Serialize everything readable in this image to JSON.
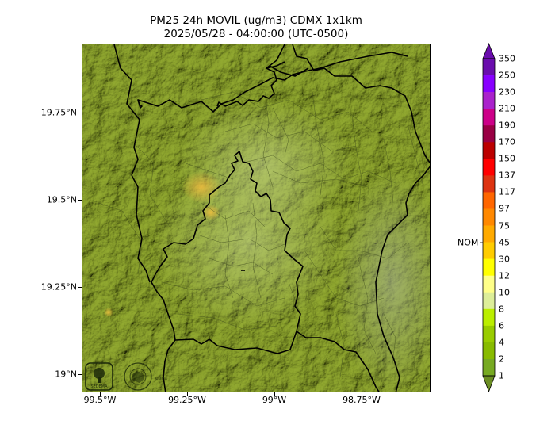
{
  "title": {
    "line1": "PM25 24h MOVIL (ug/m3) CDMX 1x1km",
    "line2": "2025/05/28 - 04:00:00 (UTC-0500)"
  },
  "axes": {
    "y_ticks": [
      "19.75°N",
      "19.5°N",
      "19.25°N",
      "19°N"
    ],
    "x_ticks": [
      "99.5°W",
      "99.25°W",
      "99°W",
      "98.75°W"
    ]
  },
  "colorbar": {
    "labels": [
      "350",
      "250",
      "230",
      "210",
      "190",
      "170",
      "150",
      "137",
      "117",
      "97",
      "75",
      "45",
      "30",
      "12",
      "10",
      "8",
      "6",
      "4",
      "2",
      "1"
    ],
    "colors_top_to_bottom": [
      "#6a0dad",
      "#8800ff",
      "#aa22cc",
      "#cc0088",
      "#990044",
      "#bb0000",
      "#ff0000",
      "#dd3311",
      "#ff6600",
      "#ff8800",
      "#ffaa00",
      "#ffcc00",
      "#ffff00",
      "#ffff88",
      "#ddee99",
      "#bbee00",
      "#99cc00",
      "#88bb00",
      "#77aa22"
    ],
    "extend_top_color": "#6a0dad",
    "extend_bottom_color": "#6b8e23",
    "nom_label": "NOM"
  },
  "logos": {
    "left": "SEDEMA logo",
    "right": "CDMX government seal"
  }
}
